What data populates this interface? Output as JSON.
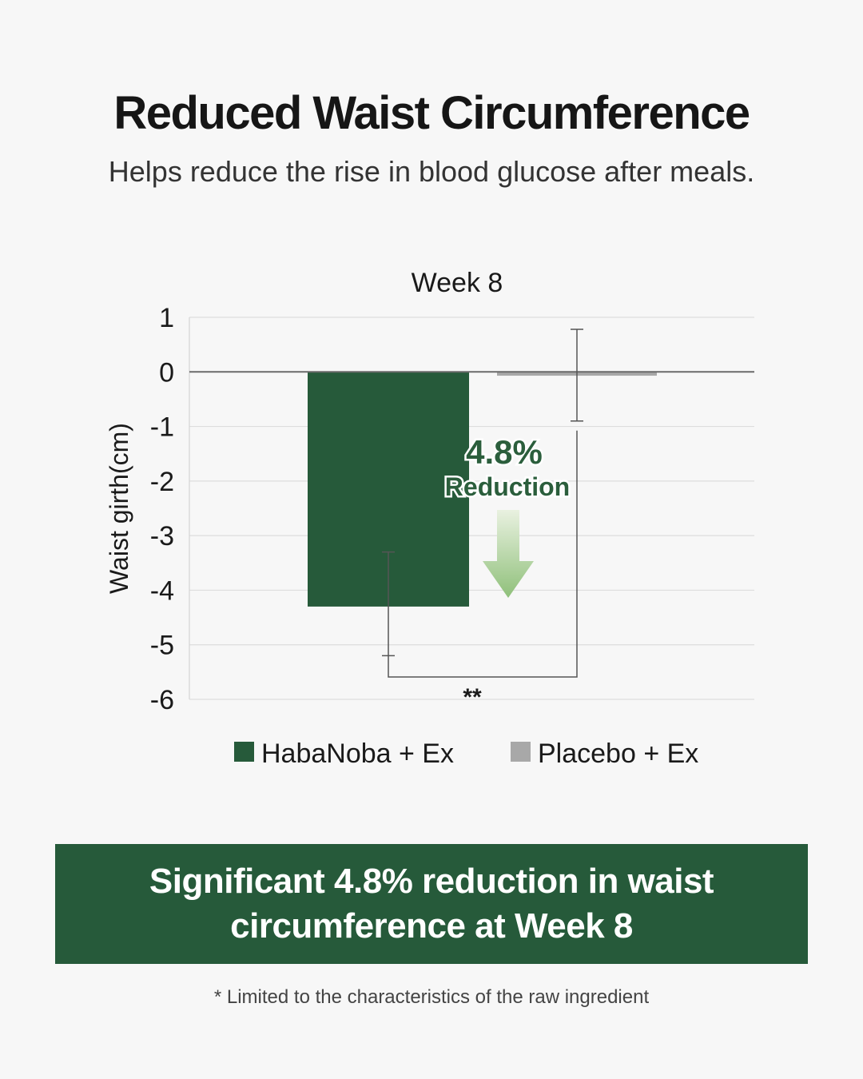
{
  "page": {
    "title": "Reduced Waist Circumference",
    "subtitle": "Helps reduce the rise in blood glucose after meals."
  },
  "chart_data": {
    "type": "bar",
    "title": "Week 8",
    "xlabel": "",
    "ylabel": "Waist girth(cm)",
    "ylim": [
      -6,
      1
    ],
    "yticks": [
      1,
      0,
      -1,
      -2,
      -3,
      -4,
      -5,
      -6
    ],
    "grid": true,
    "legend_position": "bottom",
    "series": [
      {
        "name": "HabaNoba + Ex",
        "value": -4.3,
        "error_low": -5.2,
        "error_high": -3.3,
        "color": "#265a3a"
      },
      {
        "name": "Placebo + Ex",
        "value": -0.07,
        "error_low": -0.9,
        "error_high": 0.78,
        "color": "#a8a8a8"
      }
    ],
    "annotations": {
      "reduction_percent": "4.8%",
      "reduction_label": "Reduction",
      "significance": "**"
    }
  },
  "summary": {
    "text": "Significant 4.8% reduction in waist circumference at Week 8"
  },
  "footnote": "* Limited to the characteristics of the raw ingredient"
}
